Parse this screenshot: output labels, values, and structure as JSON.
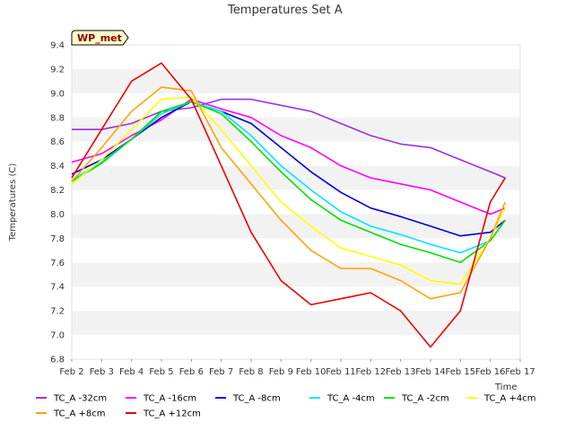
{
  "chart_data": {
    "type": "line",
    "title": "Temperatures Set A",
    "xlabel": "Time",
    "ylabel": "Temperatures (C)",
    "badge": "WP_met",
    "xlim": [
      "Feb 2",
      "Feb 17"
    ],
    "ylim": [
      6.8,
      9.4
    ],
    "x_ticks": [
      "Feb 2",
      "Feb 3",
      "Feb 4",
      "Feb 5",
      "Feb 6",
      "Feb 7",
      "Feb 8",
      "Feb 9",
      "Feb 10",
      "Feb 11",
      "Feb 12",
      "Feb 13",
      "Feb 14",
      "Feb 15",
      "Feb 16",
      "Feb 17"
    ],
    "y_ticks": [
      "6.8",
      "7.0",
      "7.2",
      "7.4",
      "7.6",
      "7.8",
      "8.0",
      "8.2",
      "8.4",
      "8.6",
      "8.8",
      "9.0",
      "9.2",
      "9.4"
    ],
    "grid": "horizontal alternating bands",
    "legend_position": "bottom",
    "x": [
      "Feb 2",
      "Feb 3",
      "Feb 4",
      "Feb 5",
      "Feb 6",
      "Feb 7",
      "Feb 8",
      "Feb 9",
      "Feb 10",
      "Feb 11",
      "Feb 12",
      "Feb 13",
      "Feb 14",
      "Feb 15",
      "Feb 16",
      "Feb 16 12:00"
    ],
    "series": [
      {
        "name": "TC_A -32cm",
        "color": "#9b30e0",
        "values": [
          8.7,
          8.7,
          8.75,
          8.85,
          8.88,
          8.95,
          8.95,
          8.9,
          8.85,
          8.75,
          8.65,
          8.58,
          8.55,
          8.45,
          8.35,
          8.3
        ]
      },
      {
        "name": "TC_A -16cm",
        "color": "#ff00ff",
        "values": [
          8.43,
          8.5,
          8.65,
          8.78,
          8.95,
          8.87,
          8.8,
          8.65,
          8.55,
          8.4,
          8.3,
          8.25,
          8.2,
          8.1,
          8.0,
          8.05
        ]
      },
      {
        "name": "TC_A -8cm",
        "color": "#0000dd",
        "values": [
          8.33,
          8.45,
          8.62,
          8.8,
          8.93,
          8.85,
          8.75,
          8.55,
          8.35,
          8.18,
          8.05,
          7.98,
          7.9,
          7.82,
          7.85,
          7.95
        ]
      },
      {
        "name": "TC_A -4cm",
        "color": "#00e5ff",
        "values": [
          8.28,
          8.43,
          8.62,
          8.83,
          8.93,
          8.85,
          8.65,
          8.4,
          8.2,
          8.02,
          7.9,
          7.83,
          7.75,
          7.68,
          7.78,
          7.95
        ]
      },
      {
        "name": "TC_A -2cm",
        "color": "#00e000",
        "values": [
          8.27,
          8.42,
          8.62,
          8.85,
          8.93,
          8.83,
          8.6,
          8.35,
          8.12,
          7.95,
          7.85,
          7.75,
          7.68,
          7.6,
          7.78,
          7.95
        ]
      },
      {
        "name": "TC_A +4cm",
        "color": "#ffff00",
        "values": [
          8.25,
          8.45,
          8.7,
          8.95,
          8.97,
          8.7,
          8.4,
          8.1,
          7.9,
          7.72,
          7.65,
          7.58,
          7.45,
          7.42,
          7.8,
          8.05
        ]
      },
      {
        "name": "TC_A +8cm",
        "color": "#ffa500",
        "values": [
          8.27,
          8.55,
          8.85,
          9.05,
          9.02,
          8.55,
          8.25,
          7.95,
          7.7,
          7.55,
          7.55,
          7.45,
          7.3,
          7.35,
          7.8,
          8.1
        ]
      },
      {
        "name": "TC_A +12cm",
        "color": "#ee0000",
        "values": [
          8.3,
          8.7,
          9.1,
          9.25,
          8.95,
          8.4,
          7.85,
          7.45,
          7.25,
          7.3,
          7.35,
          7.2,
          6.9,
          7.2,
          8.1,
          8.3
        ]
      }
    ]
  }
}
